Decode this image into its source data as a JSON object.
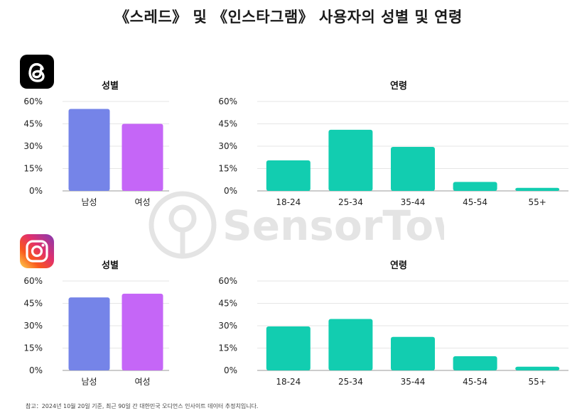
{
  "title": "《스레드》 및 《인스타그램》 사용자의 성별 및 연령",
  "footnote": "참고：2024년 10월 20일 기준, 최근 90일 간 대한민국 오디언스 인사이트 데이터 추정치입니다.",
  "watermark": "SensorTower",
  "icons": {
    "threads": "threads-logo-icon",
    "instagram": "instagram-logo-icon"
  },
  "colors": {
    "male": "#7584e8",
    "female": "#c566f7",
    "age": "#12cdb0",
    "axis": "#999999",
    "grid": "#e6e6e6"
  },
  "chart_data": [
    {
      "id": "threads-gender",
      "type": "bar",
      "title": "성별",
      "categories": [
        "남성",
        "여성"
      ],
      "values": [
        55,
        45
      ],
      "ylim": [
        0,
        60
      ],
      "yticks": [
        "0%",
        "15%",
        "30%",
        "45%",
        "60%"
      ],
      "ytick_values": [
        0,
        15,
        30,
        45,
        60
      ],
      "colors": [
        "#7584e8",
        "#c566f7"
      ]
    },
    {
      "id": "threads-age",
      "type": "bar",
      "title": "연령",
      "categories": [
        "18-24",
        "25-34",
        "35-44",
        "45-54",
        "55+"
      ],
      "values": [
        20.5,
        41,
        29.5,
        6,
        2
      ],
      "ylim": [
        0,
        60
      ],
      "yticks": [
        "0%",
        "15%",
        "30%",
        "45%",
        "60%"
      ],
      "ytick_values": [
        0,
        15,
        30,
        45,
        60
      ],
      "colors": [
        "#12cdb0"
      ]
    },
    {
      "id": "instagram-gender",
      "type": "bar",
      "title": "성별",
      "categories": [
        "남성",
        "여성"
      ],
      "values": [
        49,
        51.5
      ],
      "ylim": [
        0,
        60
      ],
      "yticks": [
        "0%",
        "15%",
        "30%",
        "45%",
        "60%"
      ],
      "ytick_values": [
        0,
        15,
        30,
        45,
        60
      ],
      "colors": [
        "#7584e8",
        "#c566f7"
      ]
    },
    {
      "id": "instagram-age",
      "type": "bar",
      "title": "연령",
      "categories": [
        "18-24",
        "25-34",
        "35-44",
        "45-54",
        "55+"
      ],
      "values": [
        29.5,
        34.5,
        22.5,
        9.5,
        2.5
      ],
      "ylim": [
        0,
        60
      ],
      "yticks": [
        "0%",
        "15%",
        "30%",
        "45%",
        "60%"
      ],
      "ytick_values": [
        0,
        15,
        30,
        45,
        60
      ],
      "colors": [
        "#12cdb0"
      ]
    }
  ]
}
